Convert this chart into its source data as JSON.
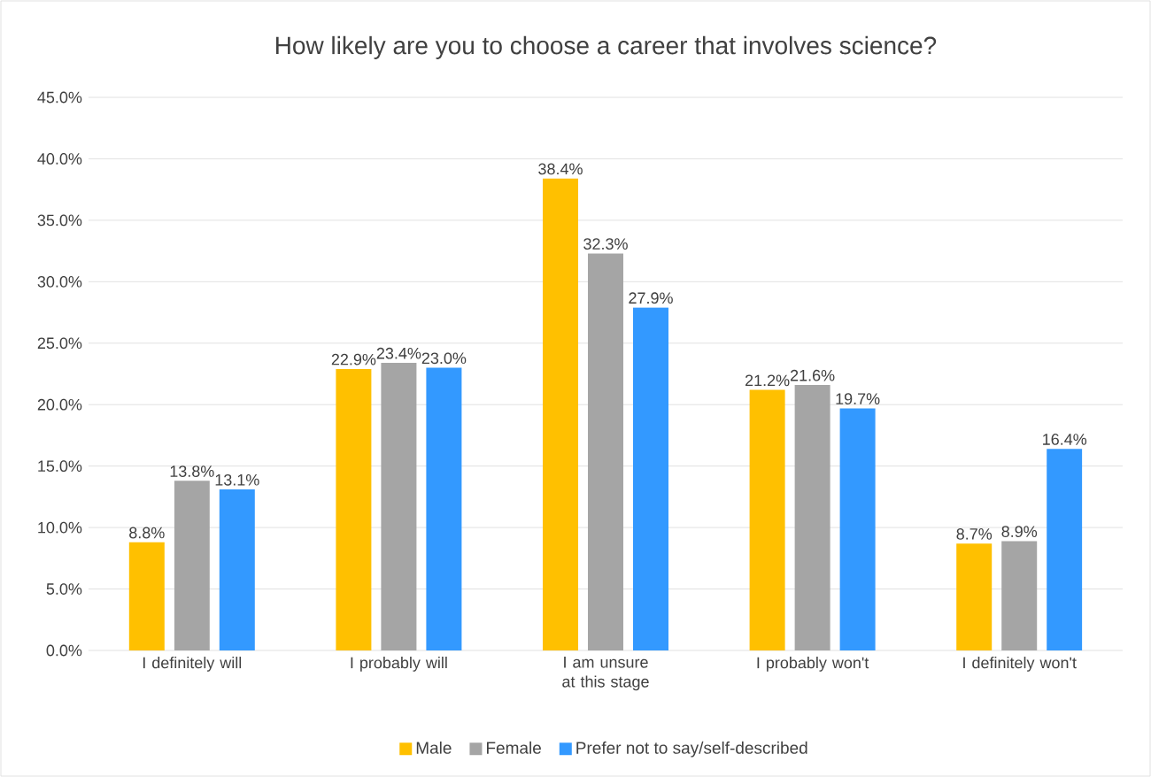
{
  "chart_data": {
    "type": "bar",
    "title": "How likely are you to choose a career that involves science?",
    "categories": [
      "I definitely will",
      "I probably will",
      "I am unsure at this stage",
      "I probably won't",
      "I definitely won't"
    ],
    "series": [
      {
        "name": "Male",
        "color": "#ffc000",
        "values": [
          8.8,
          22.9,
          38.4,
          21.2,
          8.7
        ],
        "value_labels": [
          "8.8%",
          "22.9%",
          "38.4%",
          "21.2%",
          "8.7%"
        ]
      },
      {
        "name": "Female",
        "color": "#a5a5a5",
        "values": [
          13.8,
          23.4,
          32.3,
          21.6,
          8.9
        ],
        "value_labels": [
          "13.8%",
          "23.4%",
          "32.3%",
          "21.6%",
          "8.9%"
        ]
      },
      {
        "name": "Prefer not to say/self-described",
        "color": "#3399ff",
        "values": [
          13.1,
          23.0,
          27.9,
          19.7,
          16.4
        ],
        "value_labels": [
          "13.1%",
          "23.0%",
          "27.9%",
          "19.7%",
          "16.4%"
        ]
      }
    ],
    "ylim": [
      0,
      45
    ],
    "yticks": [
      {
        "value": 0,
        "label": "0.0%"
      },
      {
        "value": 5,
        "label": "5.0%"
      },
      {
        "value": 10,
        "label": "10.0%"
      },
      {
        "value": 15,
        "label": "15.0%"
      },
      {
        "value": 20,
        "label": "20.0%"
      },
      {
        "value": 25,
        "label": "25.0%"
      },
      {
        "value": 30,
        "label": "30.0%"
      },
      {
        "value": 35,
        "label": "35.0%"
      },
      {
        "value": 40,
        "label": "40.0%"
      },
      {
        "value": 45,
        "label": "45.0%"
      }
    ],
    "grid": "y",
    "legend": "bottom"
  }
}
